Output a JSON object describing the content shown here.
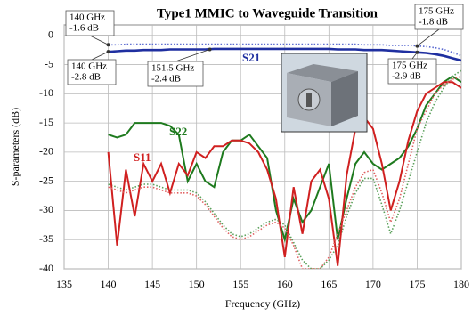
{
  "chart_data": {
    "type": "line",
    "title": "Type1 MMIC to Waveguide Transition",
    "x_label": "Frequency (GHz)",
    "y_label": "S-parameters (dB)",
    "x": [
      140,
      141,
      142,
      143,
      144,
      145,
      146,
      147,
      148,
      149,
      150,
      151,
      152,
      153,
      154,
      155,
      156,
      157,
      158,
      159,
      160,
      161,
      162,
      163,
      164,
      165,
      166,
      167,
      168,
      169,
      170,
      171,
      172,
      173,
      174,
      175,
      176,
      177,
      178,
      179,
      180
    ],
    "xlim": [
      135,
      180
    ],
    "xticks": [
      135,
      140,
      145,
      150,
      155,
      160,
      165,
      170,
      175,
      180
    ],
    "ylim": [
      -40,
      1.8
    ],
    "yticks": [
      0,
      -5,
      -10,
      -15,
      -20,
      -25,
      -30,
      -35,
      -40
    ],
    "grid": true,
    "series": [
      {
        "name": "S21",
        "color": "#1f2fa0",
        "style": "solid",
        "values": [
          -2.8,
          -2.7,
          -2.6,
          -2.6,
          -2.5,
          -2.5,
          -2.5,
          -2.4,
          -2.4,
          -2.4,
          -2.4,
          -2.4,
          -2.3,
          -2.3,
          -2.3,
          -2.3,
          -2.3,
          -2.3,
          -2.3,
          -2.3,
          -2.3,
          -2.3,
          -2.3,
          -2.3,
          -2.3,
          -2.3,
          -2.4,
          -2.4,
          -2.4,
          -2.5,
          -2.5,
          -2.5,
          -2.6,
          -2.7,
          -2.8,
          -2.9,
          -3.0,
          -3.2,
          -3.5,
          -3.9,
          -4.3
        ]
      },
      {
        "color": "#5a6ad0",
        "style": "dotted",
        "values": [
          -1.6,
          -1.6,
          -1.5,
          -1.5,
          -1.5,
          -1.5,
          -1.5,
          -1.5,
          -1.5,
          -1.5,
          -1.5,
          -1.5,
          -1.5,
          -1.5,
          -1.5,
          -1.5,
          -1.5,
          -1.5,
          -1.5,
          -1.5,
          -1.5,
          -1.5,
          -1.5,
          -1.5,
          -1.5,
          -1.5,
          -1.5,
          -1.5,
          -1.5,
          -1.6,
          -1.6,
          -1.6,
          -1.7,
          -1.7,
          -1.7,
          -1.8,
          -1.9,
          -2.1,
          -2.4,
          -2.9,
          -3.5
        ]
      },
      {
        "name": "S22",
        "color": "#1e7a1e",
        "style": "solid",
        "values": [
          -17,
          -17.5,
          -17,
          -15,
          -15,
          -15,
          -15,
          -15.5,
          -17,
          -25,
          -22,
          -25,
          -26,
          -20,
          -18,
          -18,
          -17,
          -19,
          -21,
          -30,
          -35,
          -28,
          -32,
          -30,
          -26,
          -22,
          -35,
          -28,
          -22,
          -20,
          -22,
          -23,
          -22,
          -21,
          -19,
          -16,
          -12,
          -10,
          -8,
          -7,
          -8
        ]
      },
      {
        "color": "#5aa05a",
        "style": "dotted",
        "values": [
          -25.5,
          -26,
          -26.5,
          -26,
          -25.5,
          -25.5,
          -26,
          -26.5,
          -26.5,
          -26.5,
          -27,
          -28.5,
          -30.5,
          -32.5,
          -34,
          -34.5,
          -34,
          -33,
          -32,
          -31.5,
          -32.5,
          -35.5,
          -38.5,
          -40,
          -40,
          -38.5,
          -36,
          -31,
          -27,
          -24.5,
          -24.5,
          -29,
          -34,
          -30,
          -25,
          -20,
          -15,
          -11.5,
          -9,
          -7,
          -6
        ]
      },
      {
        "name": "S11",
        "color": "#d02020",
        "style": "solid",
        "values": [
          -20,
          -36,
          -23,
          -31,
          -22,
          -25,
          -22,
          -27,
          -22,
          -24,
          -20,
          -21,
          -19,
          -19,
          -18,
          -18,
          -18.5,
          -20,
          -23,
          -28,
          -38,
          -26,
          -34,
          -25,
          -23,
          -28,
          -39.5,
          -24,
          -16,
          -14,
          -16,
          -22,
          -30,
          -25,
          -18,
          -13,
          -10,
          -9,
          -8,
          -8,
          -9
        ]
      },
      {
        "color": "#e06060",
        "style": "dotted",
        "values": [
          -26,
          -26.5,
          -27,
          -26.5,
          -26,
          -26,
          -26.5,
          -27,
          -27,
          -27,
          -27.5,
          -29,
          -31,
          -33,
          -34.5,
          -35,
          -34.5,
          -33.5,
          -32.5,
          -32,
          -33,
          -36,
          -40,
          -40,
          -40,
          -38,
          -34,
          -30,
          -26,
          -23.5,
          -23,
          -27,
          -32,
          -28,
          -22,
          -16,
          -13,
          -10,
          -8.5,
          -7.5,
          -7
        ]
      }
    ],
    "annotations": [
      {
        "lines": [
          "140 GHz",
          "-1.6 dB"
        ],
        "x": 140,
        "y": -1.6
      },
      {
        "lines": [
          "175 GHz",
          "-1.8 dB"
        ],
        "x": 175,
        "y": -1.8
      },
      {
        "lines": [
          "140 GHz",
          "-2.8 dB"
        ],
        "x": 140,
        "y": -2.8
      },
      {
        "lines": [
          "151.5 GHz",
          "-2.4 dB"
        ],
        "x": 151.5,
        "y": -2.4
      },
      {
        "lines": [
          "175 GHz",
          "-2.9 dB"
        ],
        "x": 175,
        "y": -2.9
      }
    ]
  }
}
